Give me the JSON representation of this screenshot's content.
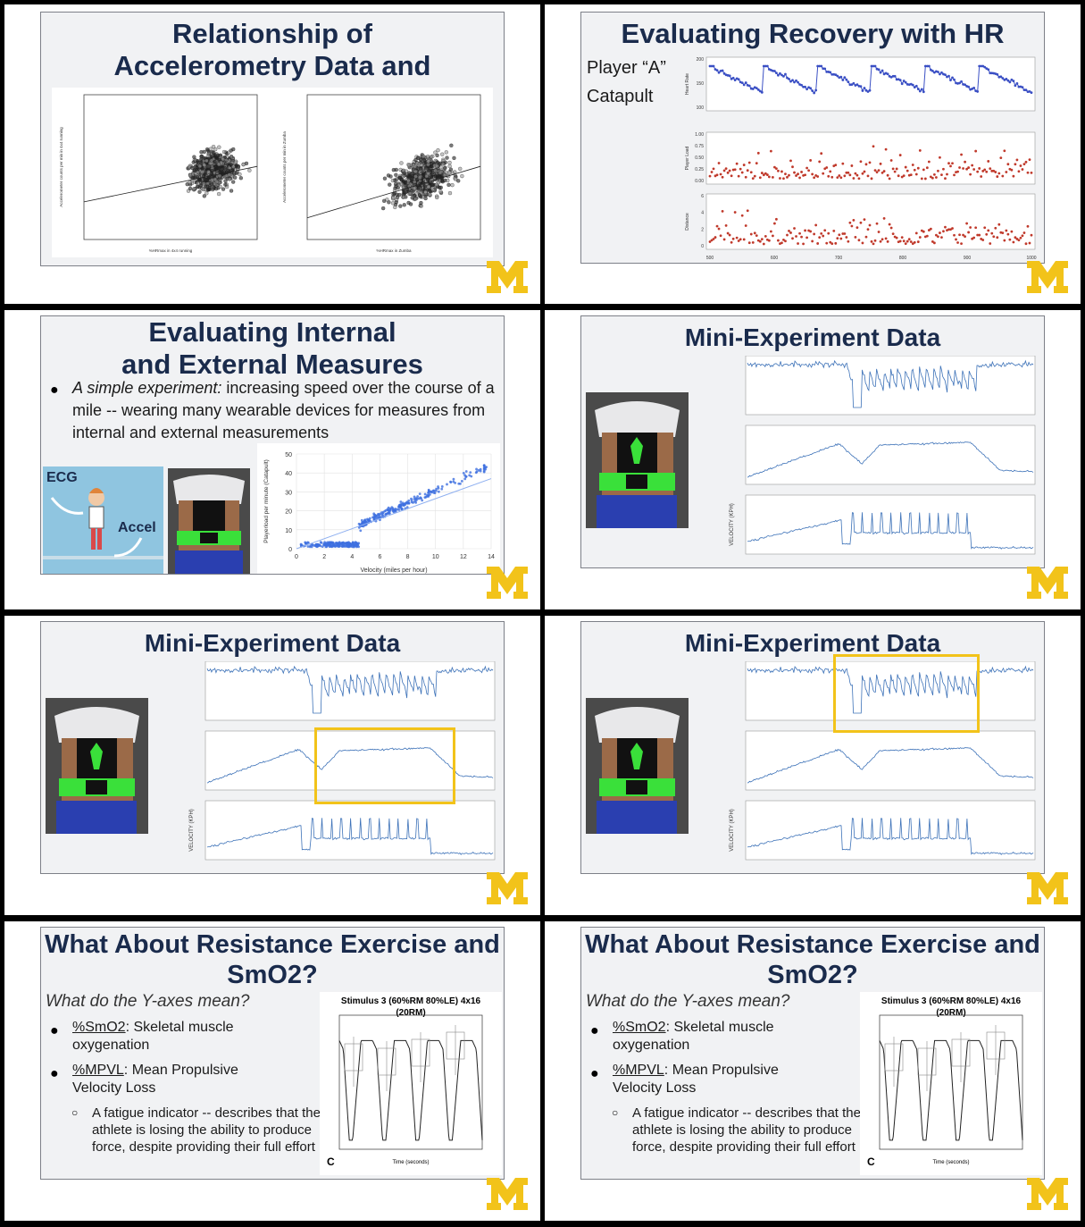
{
  "slides": {
    "s1": {
      "title": "Relationship of Accelerometry Data and HR",
      "plot_left": {
        "ylabel": "Accelerometer counts per min in 4x4 running",
        "xlabel": "%HRmax in 4x4 running"
      },
      "plot_right": {
        "ylabel": "Accelerometer counts per min in Zumba",
        "xlabel": "%HRmax in Zumba"
      }
    },
    "s2": {
      "title": "Evaluating Recovery with HR",
      "side1": "Player “A”",
      "side2": "Catapult",
      "ylabels": [
        "Heart Rate",
        "Player Load",
        "Distance"
      ],
      "yt1": [
        "200",
        "150",
        "100"
      ],
      "yt2": [
        "1.00",
        "0.75",
        "0.50",
        "0.25",
        "0.00"
      ],
      "yt3": [
        "6",
        "4",
        "2",
        "0"
      ],
      "xt": [
        "500",
        "600",
        "700",
        "800",
        "900",
        "1000"
      ]
    },
    "s3": {
      "title": "Evaluating Internal and External Measures",
      "bullet_italic": "A simple experiment:",
      "bullet_rest": " increasing speed over the course of a mile -- wearing many wearable devices for measures from internal and external measurements",
      "ecg": "ECG",
      "accel": "Accel",
      "chart_ylabel": "Playerload per minute (Catapult)",
      "chart_xlabel": "Velocity (miles per hour)"
    },
    "s4": {
      "title": "Mini-Experiment Data",
      "vel_label": "VELOCITY (KPH)"
    },
    "s5": {
      "title": "Mini-Experiment Data",
      "vel_label": "VELOCITY (KPH)"
    },
    "s6": {
      "title": "Mini-Experiment Data",
      "vel_label": "VELOCITY (KPH)"
    },
    "s7": {
      "title": "What About Resistance Exercise and SmO2?",
      "question": "What do the Y-axes mean?",
      "b1_term": "%SmO2",
      "b1_rest": ": Skeletal muscle oxygenation",
      "b2_term": "%MPVL",
      "b2_rest": ": Mean Propulsive Velocity Loss",
      "sub": "A fatigue indicator -- describes that the athlete is losing the ability to produce force, despite providing their full effort",
      "chart_title": "Stimulus 3 (60%RM 80%LE) 4x16 (20RM)",
      "panel_letter": "C",
      "xlabel": "Time (seconds)"
    },
    "s8": {
      "title": "What About Resistance Exercise and SmO2?",
      "question": "What do the Y-axes mean?",
      "b1_term": "%SmO2",
      "b1_rest": ": Skeletal muscle oxygenation",
      "b2_term": "%MPVL",
      "b2_rest": ": Mean Propulsive Velocity Loss",
      "sub": "A fatigue indicator -- describes that the athlete is losing the ability to produce force, despite providing their full effort",
      "chart_title": "Stimulus 3 (60%RM 80%LE) 4x16 (20RM)",
      "panel_letter": "C",
      "xlabel": "Time (seconds)"
    }
  },
  "colors": {
    "navy": "#1a2b4c",
    "maize": "#f2c31a",
    "blue": "#3d6fb0",
    "red": "#c0392b",
    "highlight": "#f2c31a"
  },
  "chart_data": [
    {
      "type": "scatter",
      "title": "",
      "xlabel": "%HRmax in 4x4 running",
      "ylabel": "Accelerometer counts per min in 4x4 running",
      "xlim": [
        40,
        100
      ],
      "ylim": [
        0,
        20000
      ],
      "trend": {
        "x": [
          40,
          100
        ],
        "y": [
          5200,
          10100
        ]
      }
    },
    {
      "type": "scatter",
      "title": "",
      "xlabel": "%HRmax in Zumba",
      "ylabel": "Accelerometer counts per min in Zumba",
      "xlim": [
        40,
        100
      ],
      "ylim": [
        0,
        20000
      ],
      "trend": {
        "x": [
          40,
          100
        ],
        "y": [
          3000,
          10100
        ]
      }
    },
    {
      "type": "scatter",
      "title": "",
      "xlabel": "Velocity (miles per hour)",
      "ylabel": "Playerload per minute (Catapult)",
      "xlim": [
        0,
        14
      ],
      "ylim": [
        0,
        50
      ],
      "xticks": [
        "0",
        "2",
        "4",
        "6",
        "8",
        "10",
        "12",
        "14"
      ],
      "yticks": [
        "0",
        "10",
        "20",
        "30",
        "40",
        "50"
      ],
      "trend": {
        "x": [
          0,
          14
        ],
        "y": [
          0,
          37
        ]
      }
    }
  ]
}
